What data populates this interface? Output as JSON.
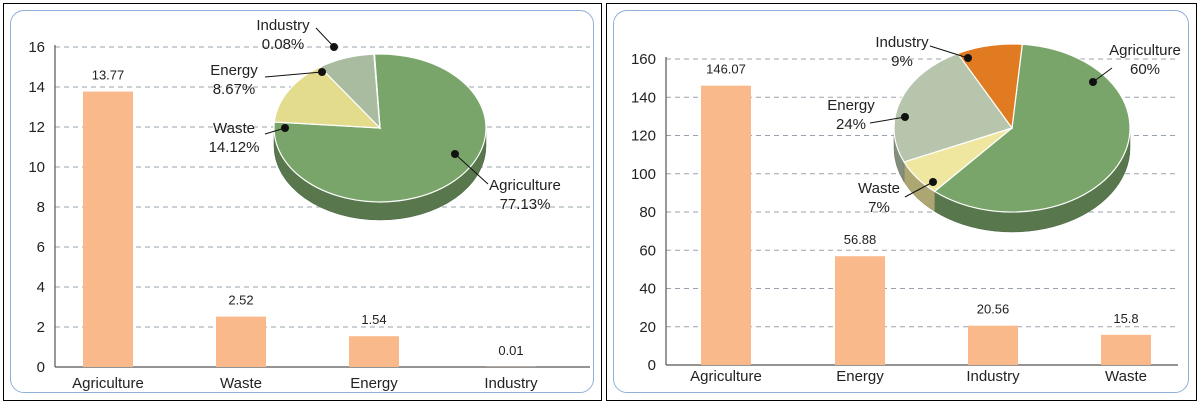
{
  "chart_data": [
    {
      "type": "bar",
      "categories": [
        "Agriculture",
        "Waste",
        "Energy",
        "Industry"
      ],
      "values": [
        13.77,
        2.52,
        1.54,
        0.01
      ],
      "value_labels": [
        "13.77",
        "2.52",
        "1.54",
        "0.01"
      ],
      "ylim": [
        0,
        16
      ],
      "yticks": [
        "0",
        "2",
        "4",
        "6",
        "8",
        "10",
        "12",
        "14",
        "16"
      ],
      "ytick_values": [
        0,
        2,
        4,
        6,
        8,
        10,
        12,
        14,
        16
      ],
      "grid": true,
      "bar_color": "#f9b98a",
      "inset_pie": {
        "type": "pie",
        "slices": [
          {
            "name": "Agriculture",
            "value": 77.13,
            "label": "77.13%",
            "color": "#7aa56a"
          },
          {
            "name": "Waste",
            "value": 14.12,
            "label": "14.12%",
            "color": "#e3dc8c"
          },
          {
            "name": "Energy",
            "value": 8.67,
            "label": "8.67%",
            "color": "#a9bca0"
          },
          {
            "name": "Industry",
            "value": 0.08,
            "label": "0.08%",
            "color": "#e07b2e"
          }
        ]
      }
    },
    {
      "type": "bar",
      "categories": [
        "Agriculture",
        "Energy",
        "Industry",
        "Waste"
      ],
      "values": [
        146.07,
        56.88,
        20.56,
        15.8
      ],
      "value_labels": [
        "146.07",
        "56.88",
        "20.56",
        "15.8"
      ],
      "ylim": [
        0,
        160
      ],
      "yticks": [
        "0",
        "20",
        "40",
        "60",
        "80",
        "100",
        "120",
        "140",
        "160"
      ],
      "ytick_values": [
        0,
        20,
        40,
        60,
        80,
        100,
        120,
        140,
        160
      ],
      "grid": true,
      "bar_color": "#f9b98a",
      "inset_pie": {
        "type": "pie",
        "slices": [
          {
            "name": "Agriculture",
            "value": 60,
            "label": "60%",
            "color": "#7aa56a"
          },
          {
            "name": "Waste",
            "value": 7,
            "label": "7%",
            "color": "#efe7a0"
          },
          {
            "name": "Energy",
            "value": 24,
            "label": "24%",
            "color": "#b6c5ac"
          },
          {
            "name": "Industry",
            "value": 9,
            "label": "9%",
            "color": "#e07b22"
          }
        ]
      }
    }
  ]
}
